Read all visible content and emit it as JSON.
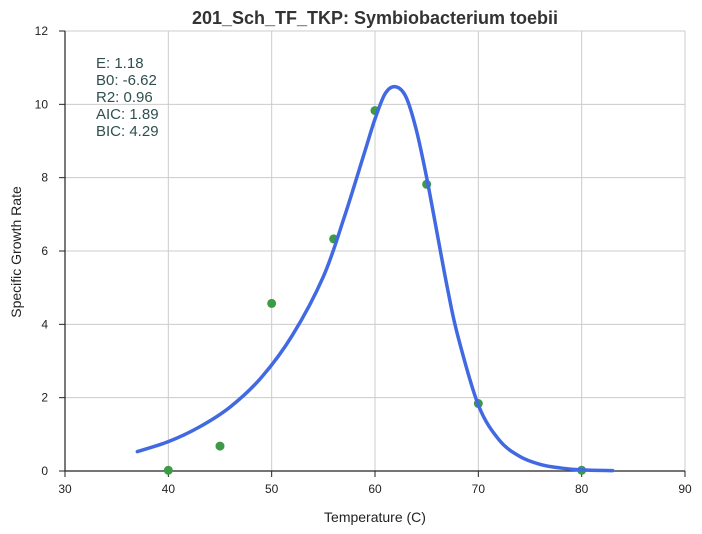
{
  "chart_data": {
    "type": "scatter",
    "title": "201_Sch_TF_TKP: Symbiobacterium toebii",
    "xlabel": "Temperature (C)",
    "ylabel": "Specific Growth Rate",
    "xlim": [
      30,
      90
    ],
    "ylim": [
      0,
      12
    ],
    "xticks": [
      30,
      40,
      50,
      60,
      70,
      80,
      90
    ],
    "yticks": [
      0,
      2,
      4,
      6,
      8,
      10,
      12
    ],
    "grid": true,
    "annotations": [
      "E:  1.18",
      "B0:  -6.62",
      "R2:  0.96",
      "AIC: 1.89",
      "BIC: 4.29"
    ],
    "series": [
      {
        "kind": "points",
        "color": "#3d9a47",
        "x": [
          40,
          45,
          50,
          56,
          60,
          65,
          70,
          80
        ],
        "y": [
          0.02,
          0.68,
          4.57,
          6.33,
          9.83,
          7.82,
          1.84,
          0.02
        ]
      },
      {
        "kind": "fitted-line",
        "color": "#4169e1",
        "x": [
          37,
          40,
          43,
          46,
          49,
          52,
          55,
          57,
          59,
          60,
          61,
          62,
          63,
          64,
          65,
          66,
          67,
          68,
          70,
          72,
          74,
          76,
          78,
          80,
          83
        ],
        "y": [
          0.53,
          0.8,
          1.2,
          1.75,
          2.55,
          3.7,
          5.3,
          6.9,
          8.7,
          9.6,
          10.3,
          10.48,
          10.2,
          9.3,
          8.0,
          6.5,
          5.0,
          3.7,
          1.8,
          0.85,
          0.4,
          0.18,
          0.08,
          0.03,
          0.01
        ]
      }
    ]
  }
}
